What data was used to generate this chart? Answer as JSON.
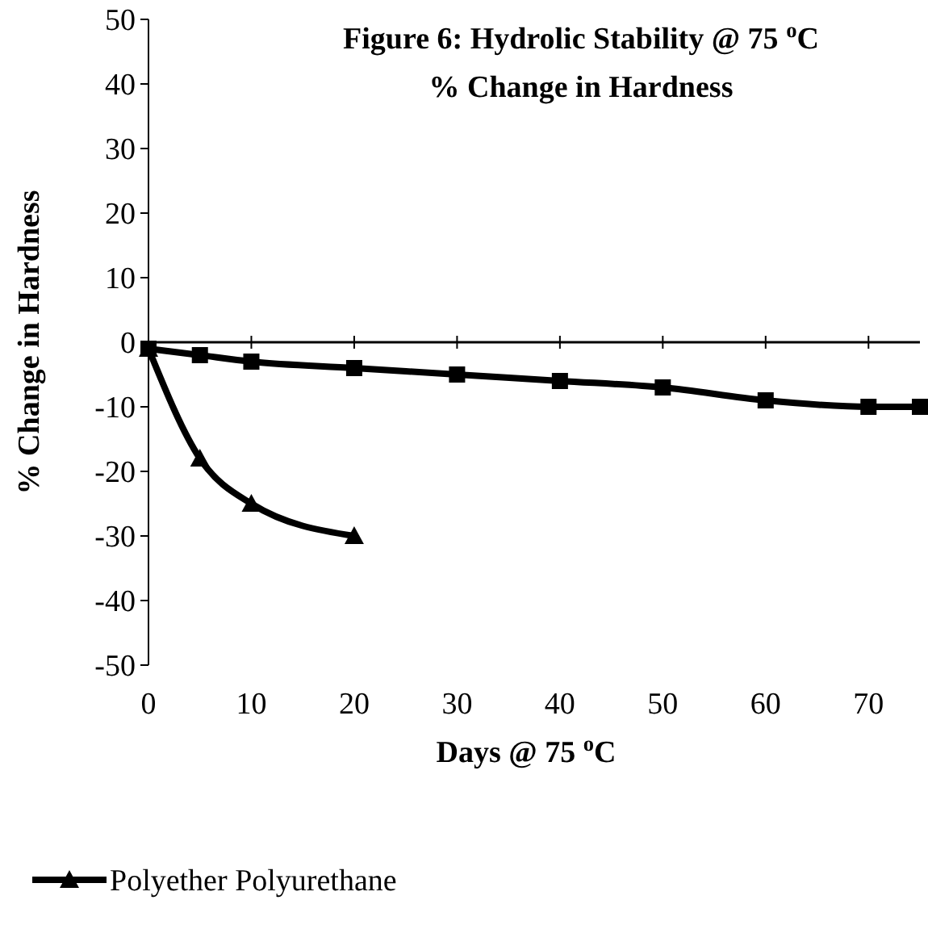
{
  "chart_data": {
    "type": "line",
    "title": "Figure 6:  Hydrolic Stability @ 75 $^{o}$C",
    "subtitle": "% Change in Hardness",
    "xlabel": "Days @ 75 $^{o}$C",
    "ylabel": "% Change in Hardness",
    "series": [
      {
        "color": "#000000",
        "marker": "square",
        "x": [
          0,
          5,
          10,
          20,
          30,
          40,
          50,
          60,
          70,
          75
        ],
        "values": [
          -1,
          -2,
          -3,
          -4,
          -5,
          -6,
          -7,
          -9,
          -10,
          -10
        ]
      },
      {
        "name": "Polyether Polyurethane",
        "color": "#000000",
        "marker": "triangle",
        "x": [
          0,
          5,
          10,
          20
        ],
        "values": [
          -1,
          -18,
          -25,
          -30
        ]
      }
    ],
    "xlim": [
      0,
      75
    ],
    "xticks": [
      0,
      10,
      20,
      30,
      40,
      50,
      60,
      70
    ],
    "ylim": [
      -50,
      50
    ],
    "yticks": [
      -50,
      -40,
      -30,
      -20,
      -10,
      0,
      10,
      20,
      30,
      40,
      50
    ],
    "ref_lines": [
      {
        "axis": "y",
        "value": 0
      }
    ],
    "grid": false,
    "legend": "bottom"
  }
}
